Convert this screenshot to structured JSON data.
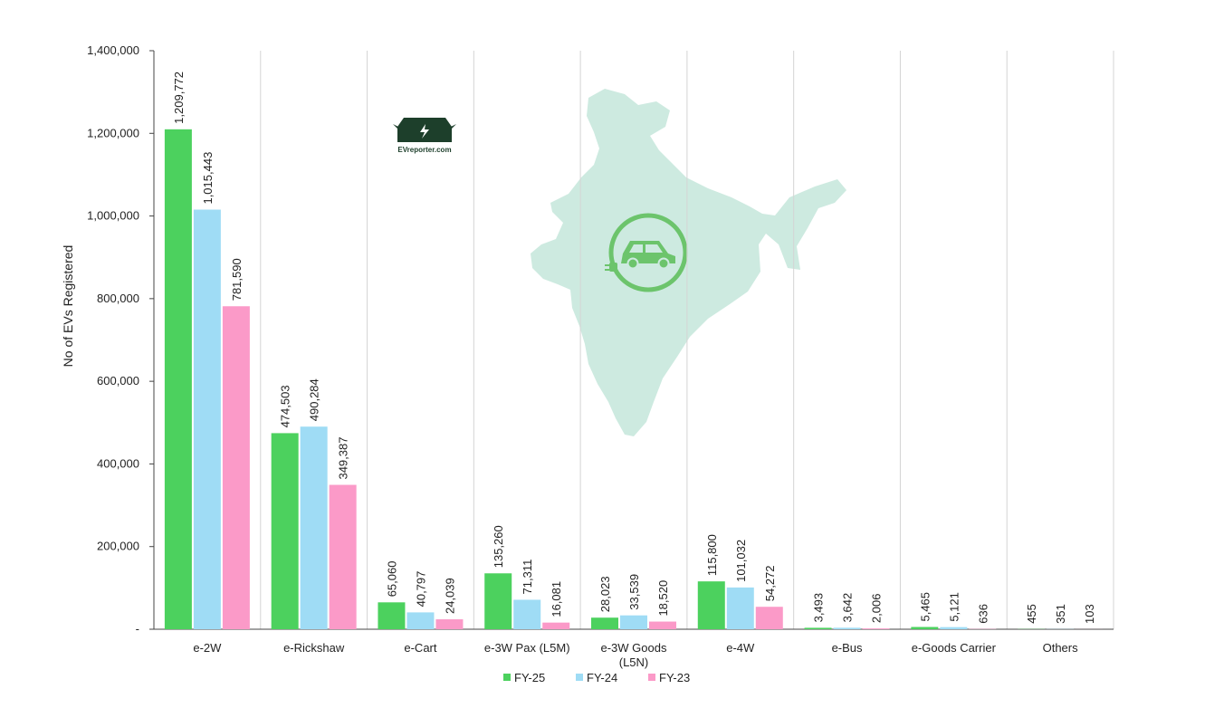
{
  "brand": {
    "logo_text": "EVreporter.com"
  },
  "chart_data": {
    "type": "bar",
    "ylabel": "No of EVs Registered",
    "ylim": [
      0,
      1400000
    ],
    "yticks": [
      {
        "value": 0,
        "label": "-"
      },
      {
        "value": 200000,
        "label": "200,000"
      },
      {
        "value": 400000,
        "label": "400,000"
      },
      {
        "value": 600000,
        "label": "600,000"
      },
      {
        "value": 800000,
        "label": "800,000"
      },
      {
        "value": 1000000,
        "label": "1,000,000"
      },
      {
        "value": 1200000,
        "label": "1,200,000"
      },
      {
        "value": 1400000,
        "label": "1,400,000"
      }
    ],
    "categories": [
      [
        "e-2W"
      ],
      [
        "e-Rickshaw"
      ],
      [
        "e-Cart"
      ],
      [
        "e-3W Pax (L5M)"
      ],
      [
        "e-3W Goods",
        "(L5N)"
      ],
      [
        "e-4W"
      ],
      [
        "e-Bus"
      ],
      [
        "e-Goods Carrier"
      ],
      [
        "Others"
      ]
    ],
    "series": [
      {
        "name": "FY-25",
        "color": "#4cd15e",
        "values": [
          1209772,
          474503,
          65060,
          135260,
          28023,
          115800,
          3493,
          5465,
          455
        ],
        "labels": [
          "1,209,772",
          "474,503",
          "65,060",
          "135,260",
          "28,023",
          "115,800",
          "3,493",
          "5,465",
          "455"
        ]
      },
      {
        "name": "FY-24",
        "color": "#9fdcf5",
        "values": [
          1015443,
          490284,
          40797,
          71311,
          33539,
          101032,
          3642,
          5121,
          351
        ],
        "labels": [
          "1,015,443",
          "490,284",
          "40,797",
          "71,311",
          "33,539",
          "101,032",
          "3,642",
          "5,121",
          "351"
        ]
      },
      {
        "name": "FY-23",
        "color": "#fb9ac8",
        "values": [
          781590,
          349387,
          24039,
          16081,
          18520,
          54272,
          2006,
          636,
          103
        ],
        "labels": [
          "781,590",
          "349,387",
          "24,039",
          "16,081",
          "18,520",
          "54,272",
          "2,006",
          "636",
          "103"
        ]
      }
    ],
    "grid": "vertical separators between categories",
    "legend": "bottom-center"
  }
}
